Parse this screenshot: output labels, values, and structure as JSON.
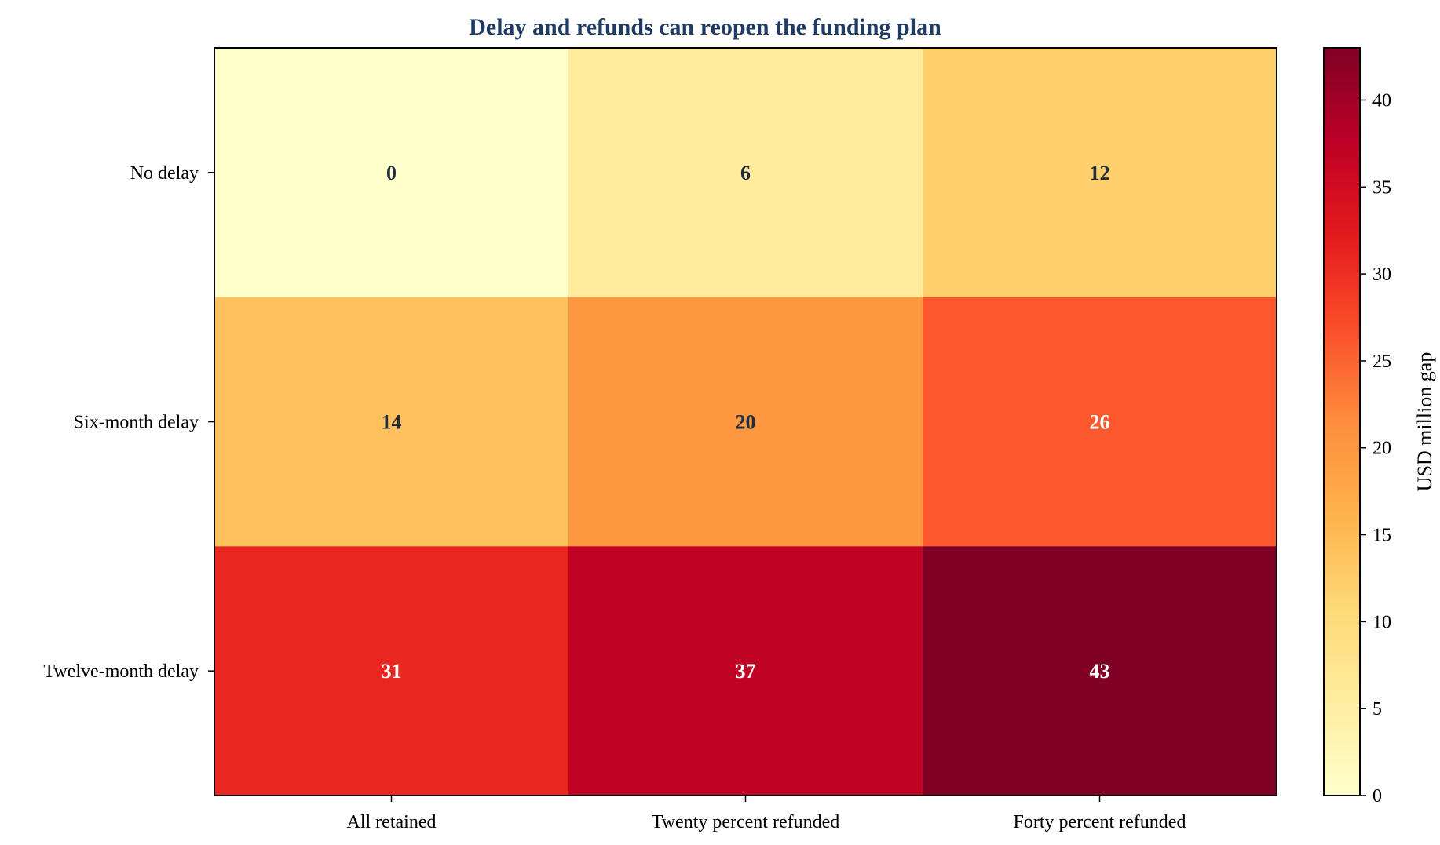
{
  "chart_data": {
    "type": "heatmap",
    "title": "Delay and refunds can reopen the funding plan",
    "title_color": "#1f3b63",
    "x_categories": [
      "All retained",
      "Twenty percent refunded",
      "Forty percent refunded"
    ],
    "y_categories": [
      "No delay",
      "Six-month delay",
      "Twelve-month delay"
    ],
    "values": [
      [
        0,
        6,
        12
      ],
      [
        14,
        20,
        26
      ],
      [
        31,
        37,
        43
      ]
    ],
    "colorbar": {
      "label": "USD million gap",
      "range": [
        0,
        43
      ],
      "ticks": [
        0,
        5,
        10,
        15,
        20,
        25,
        30,
        35,
        40
      ],
      "colormap": "YlOrRd"
    },
    "annotation_colors": {
      "dark": "#1f2d3d",
      "light": "#ffffff"
    },
    "grid": false
  }
}
